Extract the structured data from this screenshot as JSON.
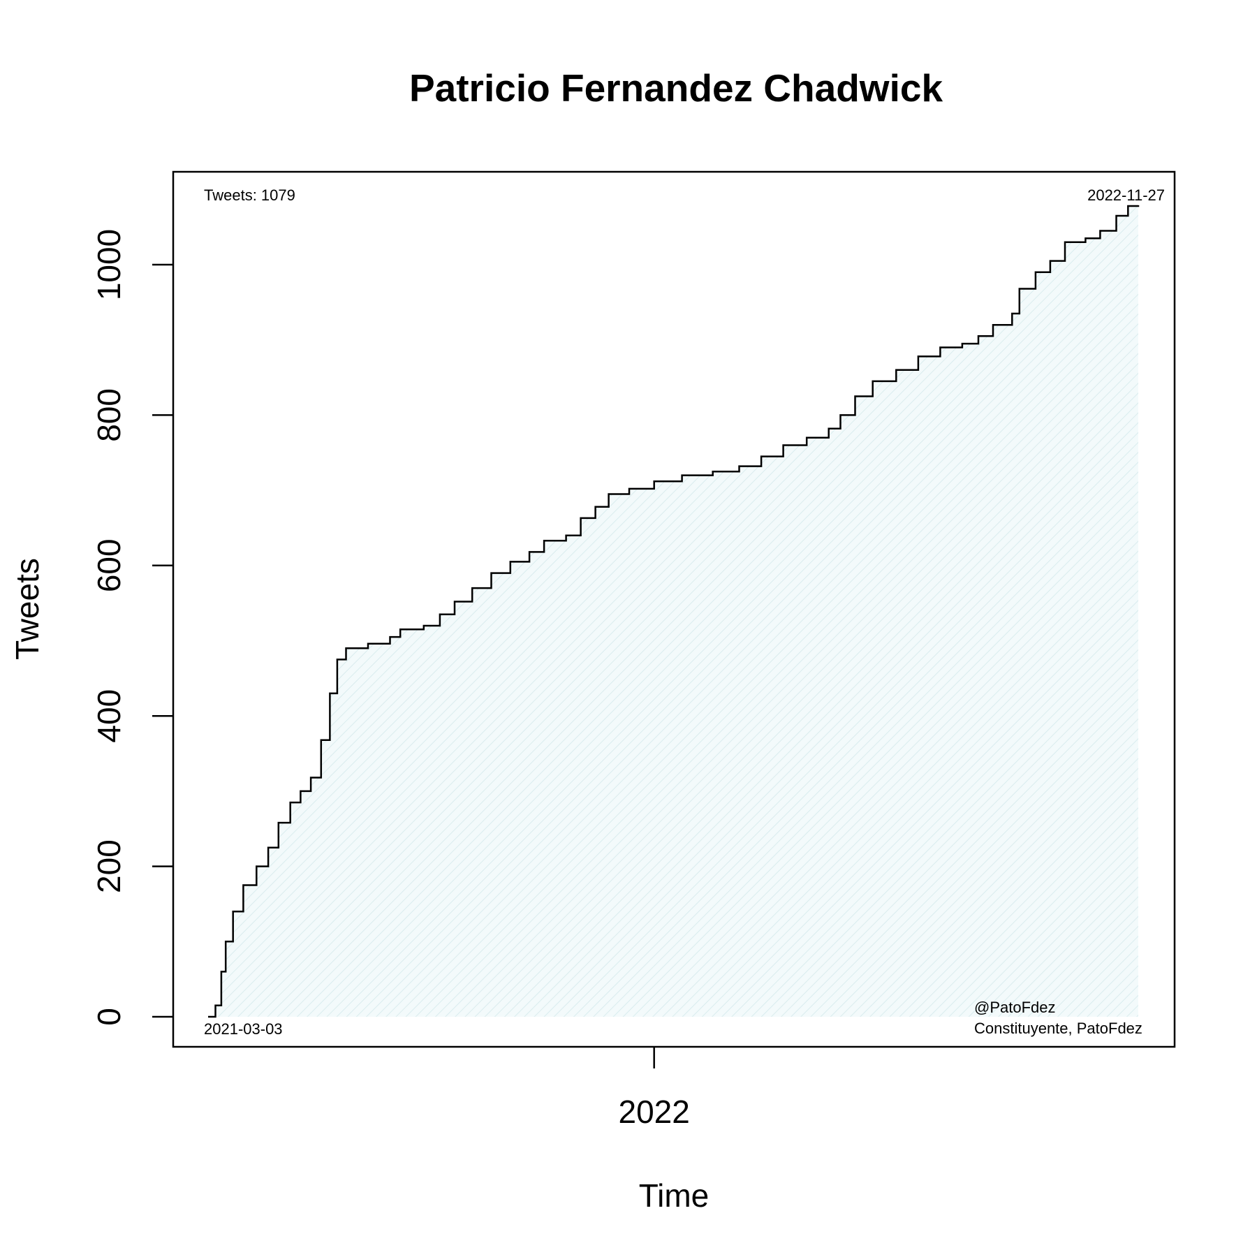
{
  "chart_data": {
    "type": "area",
    "title": "Patricio Fernandez Chadwick",
    "xlabel": "Time",
    "ylabel": "Tweets",
    "x_range": [
      "2021-03-03",
      "2022-11-27"
    ],
    "ylim": [
      0,
      1100
    ],
    "y_ticks": [
      0,
      200,
      400,
      600,
      800,
      1000
    ],
    "x_ticks": [
      {
        "date": "2022-01-01",
        "label": "2022"
      }
    ],
    "fill_color": "#e8f4f5",
    "line_color": "#000000",
    "annotations": {
      "top_left": "Tweets: 1079",
      "top_right": "2022-11-27",
      "bottom_left": "2021-03-03",
      "bottom_right_line1": "@PatoFdez",
      "bottom_right_line2": "Constituyente, PatoFdez"
    },
    "series": [
      {
        "name": "",
        "points": [
          [
            "2021-03-03",
            0
          ],
          [
            "2021-03-08",
            15
          ],
          [
            "2021-03-12",
            60
          ],
          [
            "2021-03-15",
            100
          ],
          [
            "2021-03-20",
            140
          ],
          [
            "2021-03-27",
            175
          ],
          [
            "2021-04-05",
            200
          ],
          [
            "2021-04-13",
            225
          ],
          [
            "2021-04-20",
            258
          ],
          [
            "2021-04-28",
            285
          ],
          [
            "2021-05-05",
            300
          ],
          [
            "2021-05-12",
            318
          ],
          [
            "2021-05-19",
            368
          ],
          [
            "2021-05-25",
            430
          ],
          [
            "2021-05-30",
            475
          ],
          [
            "2021-06-05",
            490
          ],
          [
            "2021-06-20",
            496
          ],
          [
            "2021-07-05",
            505
          ],
          [
            "2021-07-12",
            515
          ],
          [
            "2021-07-28",
            520
          ],
          [
            "2021-08-08",
            535
          ],
          [
            "2021-08-18",
            552
          ],
          [
            "2021-08-30",
            570
          ],
          [
            "2021-09-12",
            590
          ],
          [
            "2021-09-25",
            605
          ],
          [
            "2021-10-08",
            618
          ],
          [
            "2021-10-18",
            633
          ],
          [
            "2021-11-02",
            640
          ],
          [
            "2021-11-12",
            663
          ],
          [
            "2021-11-22",
            678
          ],
          [
            "2021-12-01",
            695
          ],
          [
            "2021-12-15",
            702
          ],
          [
            "2022-01-01",
            712
          ],
          [
            "2022-01-20",
            720
          ],
          [
            "2022-02-10",
            725
          ],
          [
            "2022-02-28",
            732
          ],
          [
            "2022-03-15",
            745
          ],
          [
            "2022-03-30",
            760
          ],
          [
            "2022-04-15",
            770
          ],
          [
            "2022-04-30",
            782
          ],
          [
            "2022-05-08",
            800
          ],
          [
            "2022-05-18",
            825
          ],
          [
            "2022-05-30",
            845
          ],
          [
            "2022-06-15",
            860
          ],
          [
            "2022-06-30",
            878
          ],
          [
            "2022-07-15",
            890
          ],
          [
            "2022-07-30",
            895
          ],
          [
            "2022-08-10",
            905
          ],
          [
            "2022-08-20",
            920
          ],
          [
            "2022-09-02",
            935
          ],
          [
            "2022-09-07",
            968
          ],
          [
            "2022-09-18",
            990
          ],
          [
            "2022-09-28",
            1005
          ],
          [
            "2022-10-08",
            1030
          ],
          [
            "2022-10-22",
            1035
          ],
          [
            "2022-11-01",
            1045
          ],
          [
            "2022-11-12",
            1065
          ],
          [
            "2022-11-20",
            1078
          ],
          [
            "2022-11-27",
            1079
          ]
        ]
      }
    ]
  }
}
